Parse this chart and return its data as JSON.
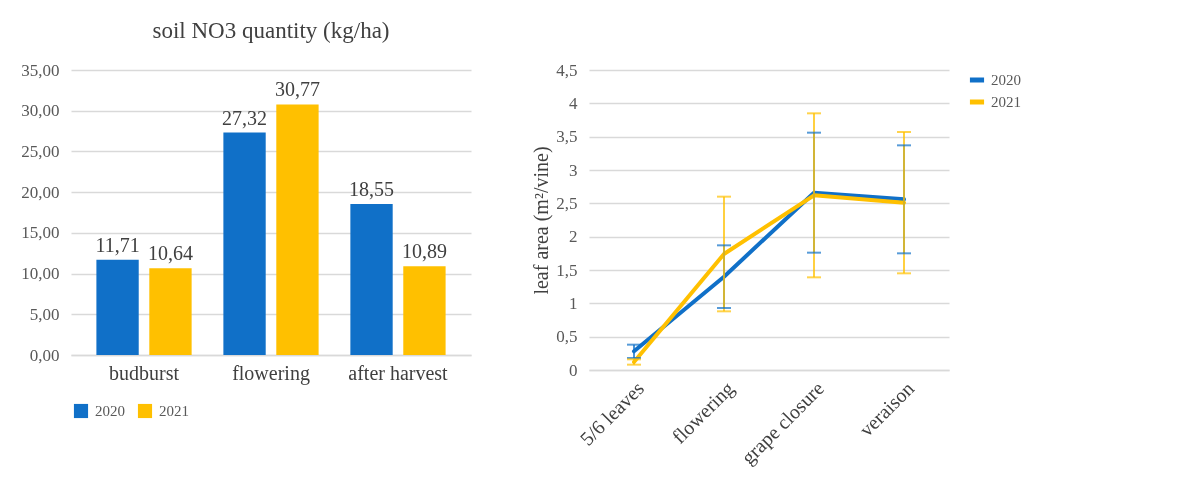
{
  "chart_data": [
    {
      "type": "bar",
      "title": "soil NO3 quantity (kg/ha)",
      "categories": [
        "budburst",
        "flowering",
        "after harvest"
      ],
      "series": [
        {
          "name": "2020",
          "color": "#1070c8",
          "values": [
            11.71,
            27.32,
            18.55
          ],
          "value_labels": [
            "11,71",
            "27,32",
            "18,55"
          ]
        },
        {
          "name": "2021",
          "color": "#ffc000",
          "values": [
            10.64,
            30.77,
            10.89
          ],
          "value_labels": [
            "10,64",
            "30,77",
            "10,89"
          ]
        }
      ],
      "ylim": [
        0,
        35
      ],
      "yticks": [
        {
          "value": 0,
          "label": "0,00"
        },
        {
          "value": 5,
          "label": "5,00"
        },
        {
          "value": 10,
          "label": "10,00"
        },
        {
          "value": 15,
          "label": "15,00"
        },
        {
          "value": 20,
          "label": "20,00"
        },
        {
          "value": 25,
          "label": "25,00"
        },
        {
          "value": 30,
          "label": "30,00"
        },
        {
          "value": 35,
          "label": "35,00"
        }
      ],
      "grid": "y",
      "legend": "bottom"
    },
    {
      "type": "line",
      "ylabel": "leaf area (m²/vine)",
      "categories": [
        "5/6 leaves",
        "flowering",
        "grape closure",
        "veraison"
      ],
      "series": [
        {
          "name": "2020",
          "color": "#1070c8",
          "values": [
            0.28,
            1.4,
            2.66,
            2.56
          ],
          "errors": [
            0.1,
            0.47,
            0.9,
            0.81
          ]
        },
        {
          "name": "2021",
          "color": "#ffc000",
          "values": [
            0.12,
            1.74,
            2.62,
            2.51
          ],
          "errors": [
            0.04,
            0.86,
            1.23,
            1.06
          ]
        }
      ],
      "ylim": [
        0,
        4.5
      ],
      "yticks": [
        0,
        {
          "value": 0.5,
          "label": "0,5"
        },
        1,
        {
          "value": 1.5,
          "label": "1,5"
        },
        2,
        {
          "value": 2.5,
          "label": "2,5"
        },
        3,
        {
          "value": 3.5,
          "label": "3,5"
        },
        4,
        {
          "value": 4.5,
          "label": "4,5"
        }
      ],
      "grid": "y",
      "legend": "right",
      "marker": "none",
      "line_style": "solid"
    }
  ]
}
